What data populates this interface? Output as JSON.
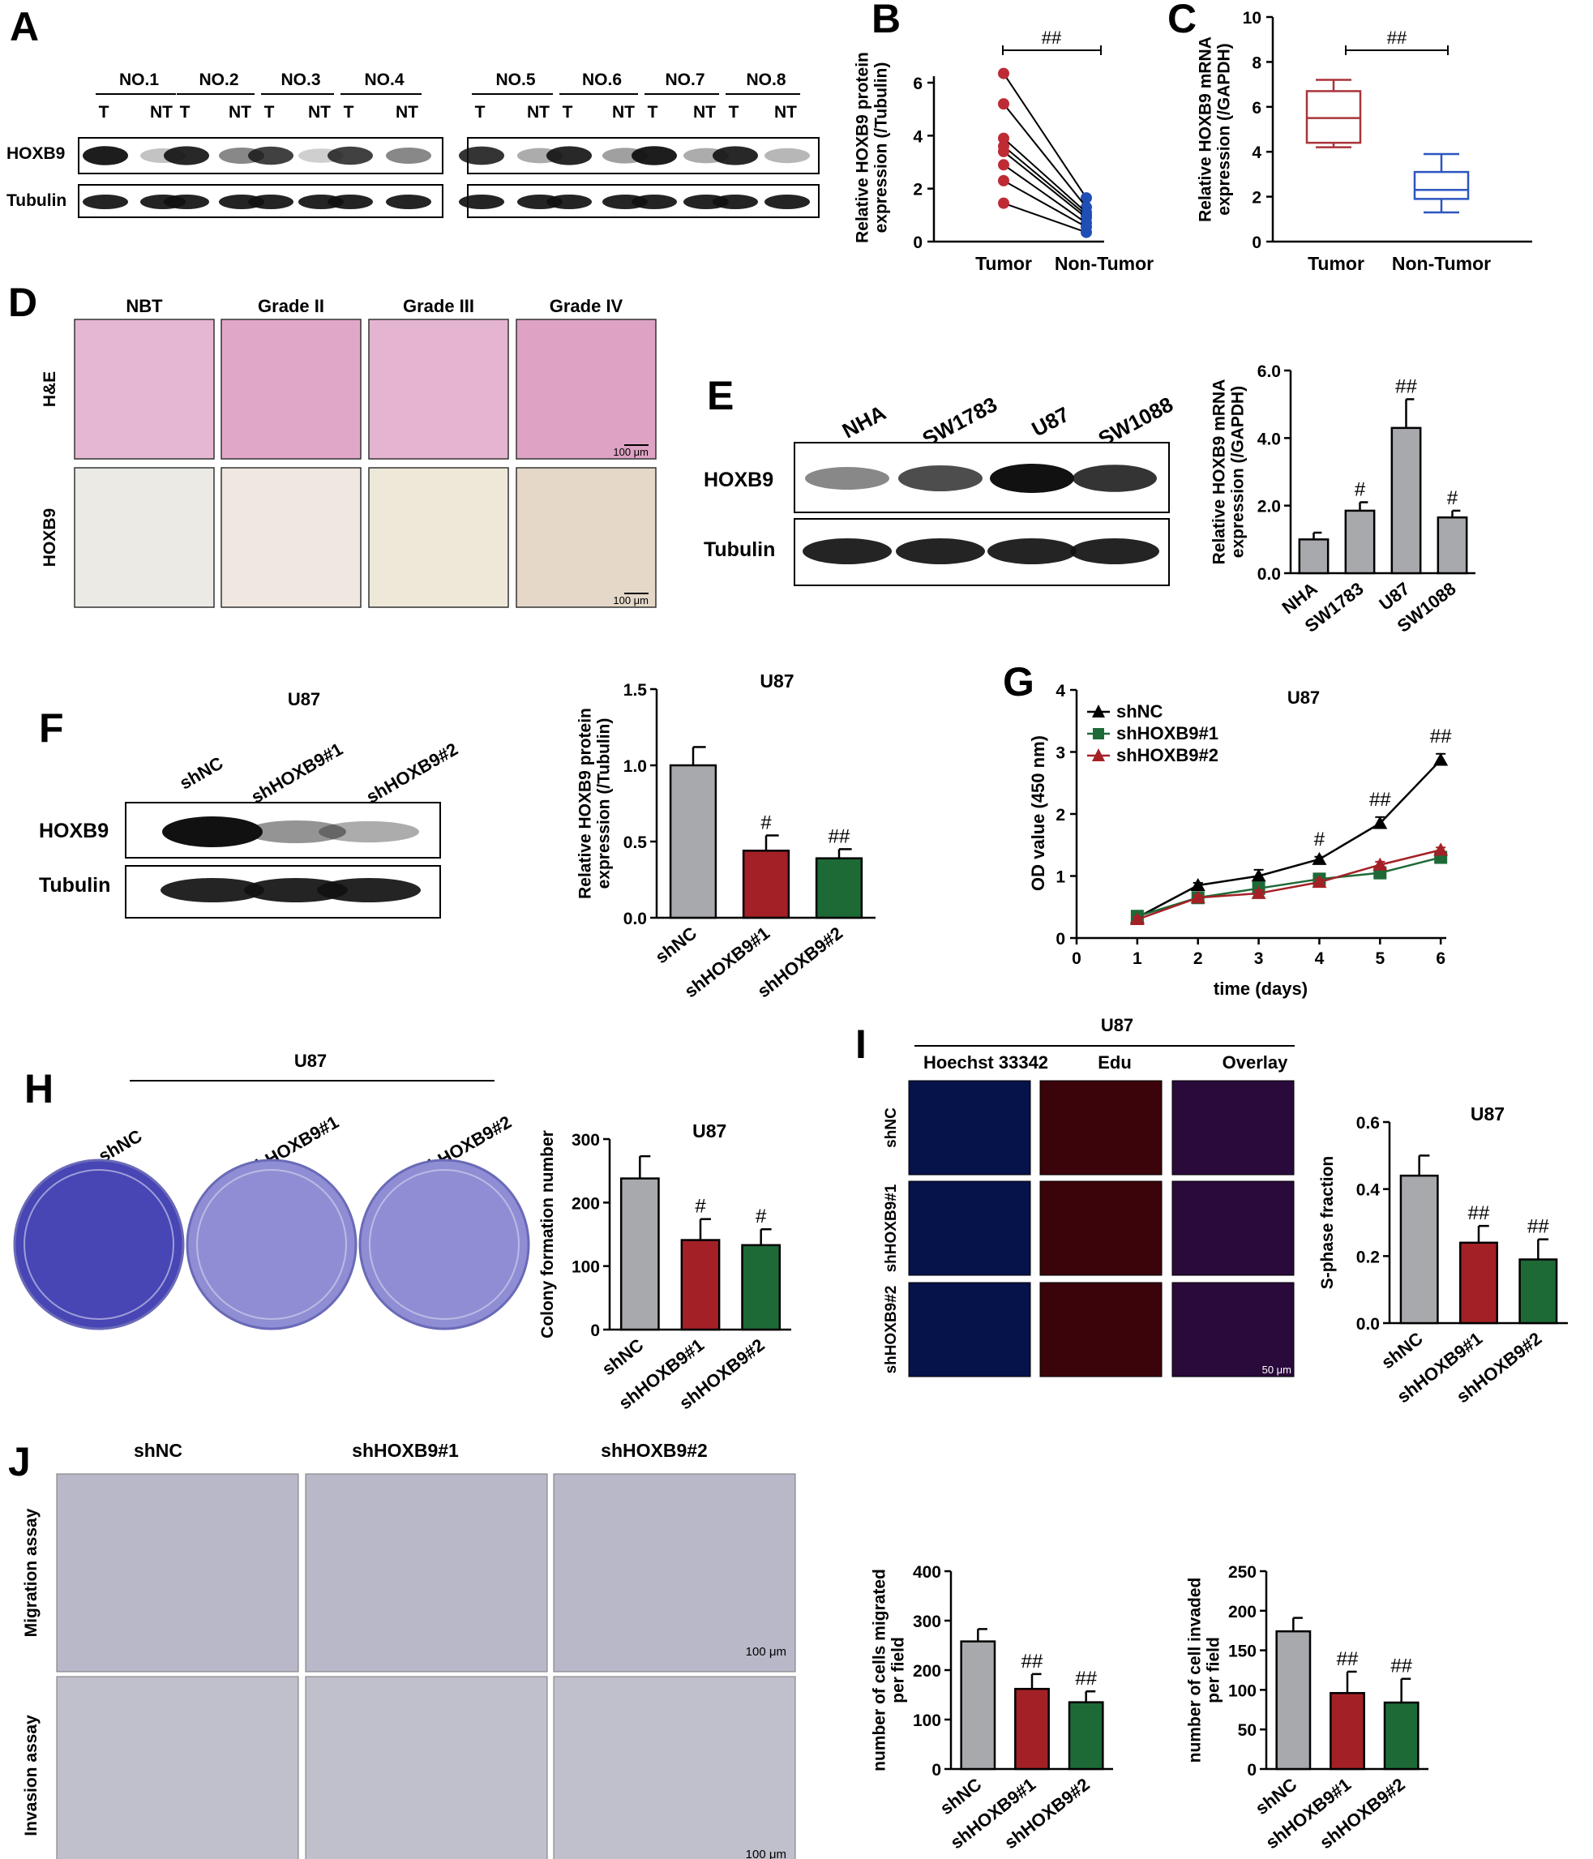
{
  "colors": {
    "grey": "#a7a9ac",
    "red": "#a32126",
    "green": "#1d6a37",
    "blue": "#2549b9",
    "tumor": "#bf2b35",
    "nontumor": "#1f4fb5",
    "boxred": "#a8343a",
    "boxblue": "#2c55c0"
  },
  "panels": [
    "A",
    "B",
    "C",
    "D",
    "E",
    "F",
    "G",
    "H",
    "I",
    "J"
  ],
  "panelA": {
    "samples": [
      "NO.1",
      "NO.2",
      "NO.3",
      "NO.4",
      "NO.5",
      "NO.6",
      "NO.7",
      "NO.8"
    ],
    "lane_T": "T",
    "lane_NT": "NT",
    "rows": [
      "HOXB9",
      "Tubulin"
    ]
  },
  "panelD": {
    "cols": [
      "NBT",
      "Grade II",
      "Grade III",
      "Grade IV"
    ],
    "rows": [
      "H&E",
      "HOXB9"
    ],
    "scale": "100 μm"
  },
  "panelE_blot": {
    "lanes": [
      "NHA",
      "SW1783",
      "U87",
      "SW1088"
    ],
    "rows": [
      "HOXB9",
      "Tubulin"
    ]
  },
  "panelF_blot": {
    "title": "U87",
    "lanes": [
      "shNC",
      "shHOXB9#1",
      "shHOXB9#2"
    ],
    "rows": [
      "HOXB9",
      "Tubulin"
    ]
  },
  "panelH_plates": {
    "title": "U87",
    "labels": [
      "shNC",
      "shHOXB9#1",
      "shHOXB9#2"
    ]
  },
  "panelI_imgs": {
    "title": "U87",
    "cols": [
      "Hoechst 33342",
      "Edu",
      "Overlay"
    ],
    "rows": [
      "shNC",
      "shHOXB9#1",
      "shHOXB9#2"
    ],
    "scale": "50 μm"
  },
  "panelJ_imgs": {
    "cols": [
      "shNC",
      "shHOXB9#1",
      "shHOXB9#2"
    ],
    "rows": [
      "Migration assay",
      "Invasion assay"
    ],
    "scale": "100 μm"
  },
  "chart_data": [
    {
      "id": "B",
      "type": "scatter",
      "ylabel": "Relative HOXB9 protein\nexpression (/Tubulin)",
      "categories": [
        "Tumor",
        "Non-Tumor"
      ],
      "ylim": [
        0,
        6
      ],
      "yticks": [
        0,
        2,
        4,
        6
      ],
      "sig": "##",
      "pairs": [
        [
          6.35,
          1.65
        ],
        [
          5.2,
          1.3
        ],
        [
          3.9,
          1.1
        ],
        [
          3.6,
          1.0
        ],
        [
          3.4,
          0.9
        ],
        [
          2.9,
          0.7
        ],
        [
          2.3,
          0.55
        ],
        [
          1.45,
          0.35
        ]
      ]
    },
    {
      "id": "C",
      "type": "box",
      "ylabel": "Relative HOXB9 mRNA\nexpression (/GAPDH)",
      "categories": [
        "Tumor",
        "Non-Tumor"
      ],
      "ylim": [
        0,
        10
      ],
      "yticks": [
        0,
        2,
        4,
        6,
        8,
        10
      ],
      "sig": "##",
      "boxes": [
        {
          "min": 4.2,
          "q1": 4.4,
          "median": 5.5,
          "q3": 6.7,
          "max": 7.2
        },
        {
          "min": 1.3,
          "q1": 1.9,
          "median": 2.3,
          "q3": 3.1,
          "max": 3.9
        }
      ]
    },
    {
      "id": "E",
      "type": "bar",
      "ylabel": "Relative HOXB9 mRNA\nexpression (/GAPDH)",
      "categories": [
        "NHA",
        "SW1783",
        "U87",
        "SW1088"
      ],
      "ylim": [
        0,
        6
      ],
      "yticks": [
        "0.0",
        "2.0",
        "4.0",
        "6.0"
      ],
      "values": [
        1.0,
        1.85,
        4.3,
        1.65
      ],
      "errors": [
        0.2,
        0.25,
        0.85,
        0.2
      ],
      "sig": [
        "",
        "#",
        "##",
        "#"
      ]
    },
    {
      "id": "F",
      "type": "bar",
      "title": "U87",
      "ylabel": "Relative HOXB9 protein\nexpression (/Tubulin)",
      "categories": [
        "shNC",
        "shHOXB9#1",
        "shHOXB9#2"
      ],
      "ylim": [
        0,
        1.5
      ],
      "yticks": [
        "0.0",
        "0.5",
        "1.0",
        "1.5"
      ],
      "values": [
        1.0,
        0.44,
        0.39
      ],
      "errors": [
        0.12,
        0.1,
        0.06
      ],
      "sig": [
        "",
        "#",
        "##"
      ]
    },
    {
      "id": "G",
      "type": "line",
      "title": "U87",
      "xlabel": "time (days)",
      "ylabel": "OD value (450 nm)",
      "xlim": [
        0,
        6
      ],
      "ylim": [
        0,
        4
      ],
      "xticks": [
        0,
        1,
        2,
        3,
        4,
        5,
        6
      ],
      "yticks": [
        0,
        1,
        2,
        3,
        4
      ],
      "x": [
        1,
        2,
        3,
        4,
        5,
        6
      ],
      "series": [
        {
          "name": "shNC",
          "values": [
            0.33,
            0.85,
            1.0,
            1.27,
            1.85,
            2.87
          ],
          "errors": [
            0.05,
            0.04,
            0.1,
            0.04,
            0.1,
            0.1
          ],
          "color": "#000000",
          "marker": "triangle"
        },
        {
          "name": "shHOXB9#1",
          "values": [
            0.35,
            0.65,
            0.8,
            0.95,
            1.05,
            1.3
          ],
          "errors": [
            0.04,
            0.04,
            0.1,
            0.06,
            0.05,
            0.04
          ],
          "color": "#1d6a37",
          "marker": "square"
        },
        {
          "name": "shHOXB9#2",
          "values": [
            0.3,
            0.65,
            0.72,
            0.9,
            1.18,
            1.42
          ],
          "errors": [
            0.04,
            0.04,
            0.05,
            0.05,
            0.05,
            0.04
          ],
          "color": "#a32126",
          "marker": "triangle"
        }
      ],
      "sig_x": [
        4,
        5,
        6
      ],
      "sig": [
        "#",
        "##",
        "##"
      ]
    },
    {
      "id": "H",
      "type": "bar",
      "title": "U87",
      "ylabel": "Colony formation number",
      "categories": [
        "shNC",
        "shHOXB9#1",
        "shHOXB9#2"
      ],
      "ylim": [
        0,
        300
      ],
      "yticks": [
        0,
        100,
        200,
        300
      ],
      "values": [
        238,
        141,
        133
      ],
      "errors": [
        35,
        33,
        25
      ],
      "sig": [
        "",
        "#",
        "#"
      ]
    },
    {
      "id": "I",
      "type": "bar",
      "title": "U87",
      "ylabel": "S-phase fraction",
      "categories": [
        "shNC",
        "shHOXB9#1",
        "shHOXB9#2"
      ],
      "ylim": [
        0,
        0.6
      ],
      "yticks": [
        "0.0",
        "0.2",
        "0.4",
        "0.6"
      ],
      "values": [
        0.44,
        0.24,
        0.19
      ],
      "errors": [
        0.06,
        0.05,
        0.06
      ],
      "sig": [
        "",
        "##",
        "##"
      ]
    },
    {
      "id": "J1",
      "type": "bar",
      "ylabel": "number of cells migrated\nper field",
      "categories": [
        "shNC",
        "shHOXB9#1",
        "shHOXB9#2"
      ],
      "ylim": [
        0,
        400
      ],
      "yticks": [
        0,
        100,
        200,
        300,
        400
      ],
      "values": [
        258,
        162,
        135
      ],
      "errors": [
        25,
        30,
        22
      ],
      "sig": [
        "",
        "##",
        "##"
      ]
    },
    {
      "id": "J2",
      "type": "bar",
      "ylabel": "number of cell invaded\nper field",
      "categories": [
        "shNC",
        "shHOXB9#1",
        "shHOXB9#2"
      ],
      "ylim": [
        0,
        250
      ],
      "yticks": [
        0,
        50,
        100,
        150,
        200,
        250
      ],
      "values": [
        174,
        96,
        84
      ],
      "errors": [
        17,
        27,
        30
      ],
      "sig": [
        "",
        "##",
        "##"
      ]
    }
  ]
}
